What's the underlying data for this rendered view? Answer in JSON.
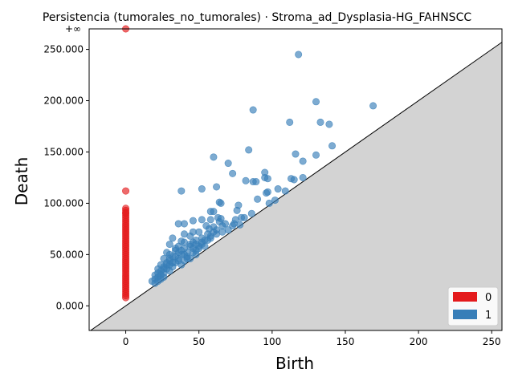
{
  "chart_data": {
    "type": "scatter",
    "title": "Persistencia (tumorales_no_tumorales) · Stroma_ad_Dysplasia-HG_FAHNSCC",
    "xlabel": "Birth",
    "ylabel": "Death",
    "xlim": [
      -25,
      257
    ],
    "ylim": [
      -24,
      270
    ],
    "infinity_label": "+∞",
    "infinity_value": 270,
    "x_ticks": [
      {
        "value": 0,
        "label": "0"
      },
      {
        "value": 50,
        "label": "50"
      },
      {
        "value": 100,
        "label": "100"
      },
      {
        "value": 150,
        "label": "150"
      },
      {
        "value": 200,
        "label": "200"
      },
      {
        "value": 250,
        "label": "250"
      }
    ],
    "y_ticks": [
      {
        "value": 0,
        "label": "0.000"
      },
      {
        "value": 50,
        "label": "50.000"
      },
      {
        "value": 100,
        "label": "100.000"
      },
      {
        "value": 150,
        "label": "150.000"
      },
      {
        "value": 200,
        "label": "200.000"
      },
      {
        "value": 250,
        "label": "250.000"
      }
    ],
    "diagonal": true,
    "legend_position": "bottom-right",
    "series": [
      {
        "name": "0",
        "color": "#e41a1c",
        "points": [
          [
            0,
            270
          ],
          [
            0,
            112
          ],
          [
            0,
            95
          ],
          [
            0,
            93
          ],
          [
            0,
            91
          ],
          [
            0,
            90
          ],
          [
            0,
            88
          ],
          [
            0,
            86
          ],
          [
            0,
            84
          ],
          [
            0,
            82
          ],
          [
            0,
            80
          ],
          [
            0,
            78
          ],
          [
            0,
            76
          ],
          [
            0,
            74
          ],
          [
            0,
            72
          ],
          [
            0,
            70
          ],
          [
            0,
            68
          ],
          [
            0,
            66
          ],
          [
            0,
            64
          ],
          [
            0,
            62
          ],
          [
            0,
            60
          ],
          [
            0,
            58
          ],
          [
            0,
            56
          ],
          [
            0,
            54
          ],
          [
            0,
            52
          ],
          [
            0,
            50
          ],
          [
            0,
            48
          ],
          [
            0,
            46
          ],
          [
            0,
            44
          ],
          [
            0,
            42
          ],
          [
            0,
            40
          ],
          [
            0,
            38
          ],
          [
            0,
            36
          ],
          [
            0,
            34
          ],
          [
            0,
            32
          ],
          [
            0,
            30
          ],
          [
            0,
            28
          ],
          [
            0,
            26
          ],
          [
            0,
            24
          ],
          [
            0,
            22
          ],
          [
            0,
            20
          ],
          [
            0,
            18
          ],
          [
            0,
            16
          ],
          [
            0,
            14
          ],
          [
            0,
            12
          ],
          [
            0,
            10
          ],
          [
            0,
            8
          ]
        ]
      },
      {
        "name": "1",
        "color": "#377eb8",
        "points": [
          [
            118,
            245
          ],
          [
            130,
            199
          ],
          [
            169,
            195
          ],
          [
            87,
            191
          ],
          [
            112,
            179
          ],
          [
            133,
            179
          ],
          [
            139,
            177
          ],
          [
            141,
            156
          ],
          [
            84,
            152
          ],
          [
            116,
            148
          ],
          [
            130,
            147
          ],
          [
            60,
            145
          ],
          [
            121,
            141
          ],
          [
            70,
            139
          ],
          [
            95,
            130
          ],
          [
            73,
            129
          ],
          [
            121,
            125
          ],
          [
            95,
            125
          ],
          [
            113,
            124
          ],
          [
            115,
            123
          ],
          [
            82,
            122
          ],
          [
            87,
            121
          ],
          [
            89,
            121
          ],
          [
            97,
            124
          ],
          [
            104,
            114
          ],
          [
            62,
            116
          ],
          [
            109,
            112
          ],
          [
            38,
            112
          ],
          [
            52,
            114
          ],
          [
            90,
            104
          ],
          [
            96,
            110
          ],
          [
            97,
            111
          ],
          [
            102,
            103
          ],
          [
            98,
            100
          ],
          [
            64,
            101
          ],
          [
            65,
            100
          ],
          [
            77,
            98
          ],
          [
            58,
            92
          ],
          [
            60,
            92
          ],
          [
            76,
            93
          ],
          [
            81,
            86
          ],
          [
            86,
            90
          ],
          [
            79,
            86
          ],
          [
            63,
            86
          ],
          [
            65,
            85
          ],
          [
            75,
            84
          ],
          [
            52,
            84
          ],
          [
            58,
            84
          ],
          [
            46,
            83
          ],
          [
            64,
            82
          ],
          [
            36,
            80
          ],
          [
            74,
            80
          ],
          [
            78,
            79
          ],
          [
            73,
            78
          ],
          [
            40,
            80
          ],
          [
            55,
            78
          ],
          [
            60,
            77
          ],
          [
            57,
            75
          ],
          [
            70,
            74
          ],
          [
            50,
            72
          ],
          [
            46,
            72
          ],
          [
            66,
            72
          ],
          [
            62,
            70
          ],
          [
            40,
            70
          ],
          [
            58,
            68
          ],
          [
            44,
            68
          ],
          [
            52,
            66
          ],
          [
            32,
            66
          ],
          [
            48,
            64
          ],
          [
            56,
            64
          ],
          [
            38,
            63
          ],
          [
            46,
            62
          ],
          [
            30,
            60
          ],
          [
            52,
            60
          ],
          [
            44,
            58
          ],
          [
            36,
            58
          ],
          [
            40,
            56
          ],
          [
            50,
            56
          ],
          [
            34,
            54
          ],
          [
            28,
            52
          ],
          [
            46,
            52
          ],
          [
            38,
            50
          ],
          [
            42,
            48
          ],
          [
            32,
            48
          ],
          [
            48,
            50
          ],
          [
            26,
            46
          ],
          [
            36,
            46
          ],
          [
            30,
            44
          ],
          [
            44,
            46
          ],
          [
            28,
            42
          ],
          [
            40,
            44
          ],
          [
            34,
            42
          ],
          [
            24,
            40
          ],
          [
            30,
            40
          ],
          [
            38,
            40
          ],
          [
            26,
            38
          ],
          [
            32,
            38
          ],
          [
            22,
            36
          ],
          [
            28,
            36
          ],
          [
            24,
            34
          ],
          [
            30,
            34
          ],
          [
            22,
            32
          ],
          [
            26,
            32
          ],
          [
            20,
            30
          ],
          [
            24,
            30
          ],
          [
            22,
            28
          ],
          [
            26,
            28
          ],
          [
            20,
            26
          ],
          [
            24,
            26
          ],
          [
            18,
            24
          ],
          [
            22,
            24
          ],
          [
            20,
            22
          ],
          [
            48,
            54
          ],
          [
            54,
            58
          ],
          [
            42,
            52
          ],
          [
            36,
            52
          ],
          [
            52,
            62
          ],
          [
            56,
            70
          ],
          [
            60,
            72
          ],
          [
            44,
            60
          ],
          [
            50,
            58
          ],
          [
            40,
            50
          ],
          [
            34,
            48
          ],
          [
            38,
            54
          ],
          [
            46,
            56
          ],
          [
            30,
            46
          ],
          [
            28,
            40
          ],
          [
            26,
            36
          ],
          [
            32,
            42
          ],
          [
            36,
            44
          ],
          [
            42,
            46
          ],
          [
            48,
            60
          ],
          [
            54,
            64
          ],
          [
            58,
            66
          ],
          [
            62,
            74
          ],
          [
            66,
            78
          ],
          [
            68,
            80
          ],
          [
            40,
            62
          ],
          [
            34,
            56
          ],
          [
            30,
            50
          ]
        ]
      }
    ]
  }
}
